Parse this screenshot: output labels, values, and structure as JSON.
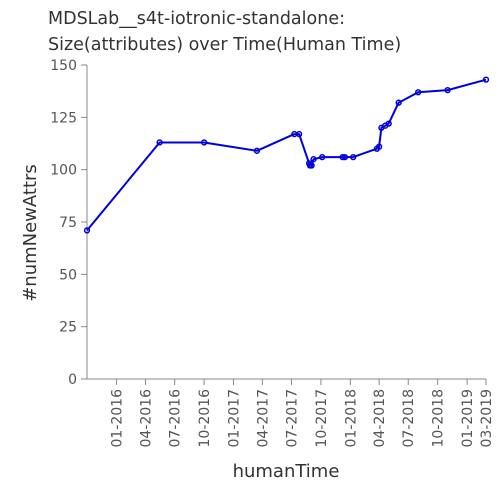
{
  "chart_data": {
    "type": "line",
    "title_lines": [
      "MDSLab__s4t-iotronic-standalone:",
      "Size(attributes) over Time(Human Time)"
    ],
    "xlabel": "humanTime",
    "ylabel": "#numNewAttrs",
    "x_ticks": [
      "01-2016",
      "04-2016",
      "07-2016",
      "10-2016",
      "01-2017",
      "04-2017",
      "07-2017",
      "10-2017",
      "01-2018",
      "04-2018",
      "07-2018",
      "10-2018",
      "01-2019",
      "03-2019"
    ],
    "x_range": [
      "2015-10-01",
      "2019-03-01"
    ],
    "y_ticks": [
      0,
      25,
      50,
      75,
      100,
      125,
      150
    ],
    "ylim": [
      0,
      150
    ],
    "grid": false,
    "line_color": "#0000dd",
    "series": [
      {
        "points": [
          {
            "x": "2015-10-01",
            "y": 71
          },
          {
            "x": "2016-05-15",
            "y": 113
          },
          {
            "x": "2016-10-01",
            "y": 113
          },
          {
            "x": "2017-03-15",
            "y": 109
          },
          {
            "x": "2017-07-10",
            "y": 117
          },
          {
            "x": "2017-07-25",
            "y": 117
          },
          {
            "x": "2017-08-25",
            "y": 103
          },
          {
            "x": "2017-08-28",
            "y": 102
          },
          {
            "x": "2017-09-02",
            "y": 102
          },
          {
            "x": "2017-09-08",
            "y": 105
          },
          {
            "x": "2017-10-05",
            "y": 106
          },
          {
            "x": "2017-12-08",
            "y": 106
          },
          {
            "x": "2017-12-15",
            "y": 106
          },
          {
            "x": "2018-01-10",
            "y": 106
          },
          {
            "x": "2018-03-25",
            "y": 110
          },
          {
            "x": "2018-04-01",
            "y": 111
          },
          {
            "x": "2018-04-08",
            "y": 120
          },
          {
            "x": "2018-04-20",
            "y": 121
          },
          {
            "x": "2018-05-01",
            "y": 122
          },
          {
            "x": "2018-06-01",
            "y": 132
          },
          {
            "x": "2018-08-01",
            "y": 137
          },
          {
            "x": "2018-11-01",
            "y": 138
          },
          {
            "x": "2019-03-01",
            "y": 143
          }
        ]
      }
    ]
  }
}
